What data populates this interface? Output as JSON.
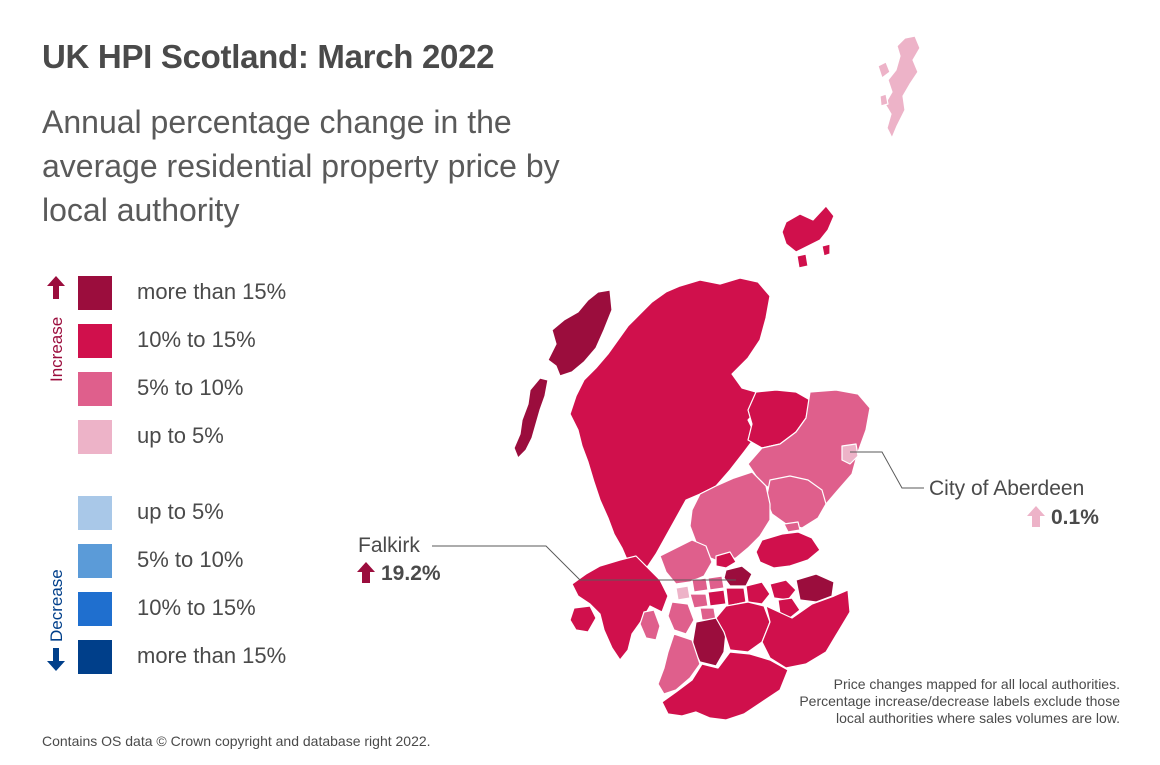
{
  "title": "UK HPI Scotland: March 2022",
  "subtitle": "Annual percentage change in the average residential property price by local authority",
  "legend": {
    "increase_label": "Increase",
    "decrease_label": "Decrease",
    "increase_color": "#9b0d3d",
    "decrease_color": "#003f8a",
    "items": [
      {
        "label": "more than 15%",
        "color": "#9b0d3d"
      },
      {
        "label": "10% to 15%",
        "color": "#d0104c"
      },
      {
        "label": "5% to 10%",
        "color": "#df5f8c"
      },
      {
        "label": "up to 5%",
        "color": "#edb3c8"
      },
      {
        "label": "up to 5%",
        "color": "#a9c8e8"
      },
      {
        "label": "5% to 10%",
        "color": "#5b9bd8"
      },
      {
        "label": "10% to 15%",
        "color": "#1f6fcf"
      },
      {
        "label": "more than 15%",
        "color": "#003f8a"
      }
    ]
  },
  "callouts": {
    "falkirk": {
      "name": "Falkirk",
      "value": "19.2%",
      "direction": "up",
      "arrow_color": "#9b0d3d"
    },
    "aberdeen": {
      "name": "City of Aberdeen",
      "value": "0.1%",
      "direction": "up",
      "arrow_color": "#edb3c8"
    }
  },
  "footer": {
    "copyright": "Contains OS data © Crown copyright and database right 2022.",
    "note": "Price changes mapped for all local authorities. Percentage increase/decrease labels exclude those local authorities where sales volumes are low."
  }
}
